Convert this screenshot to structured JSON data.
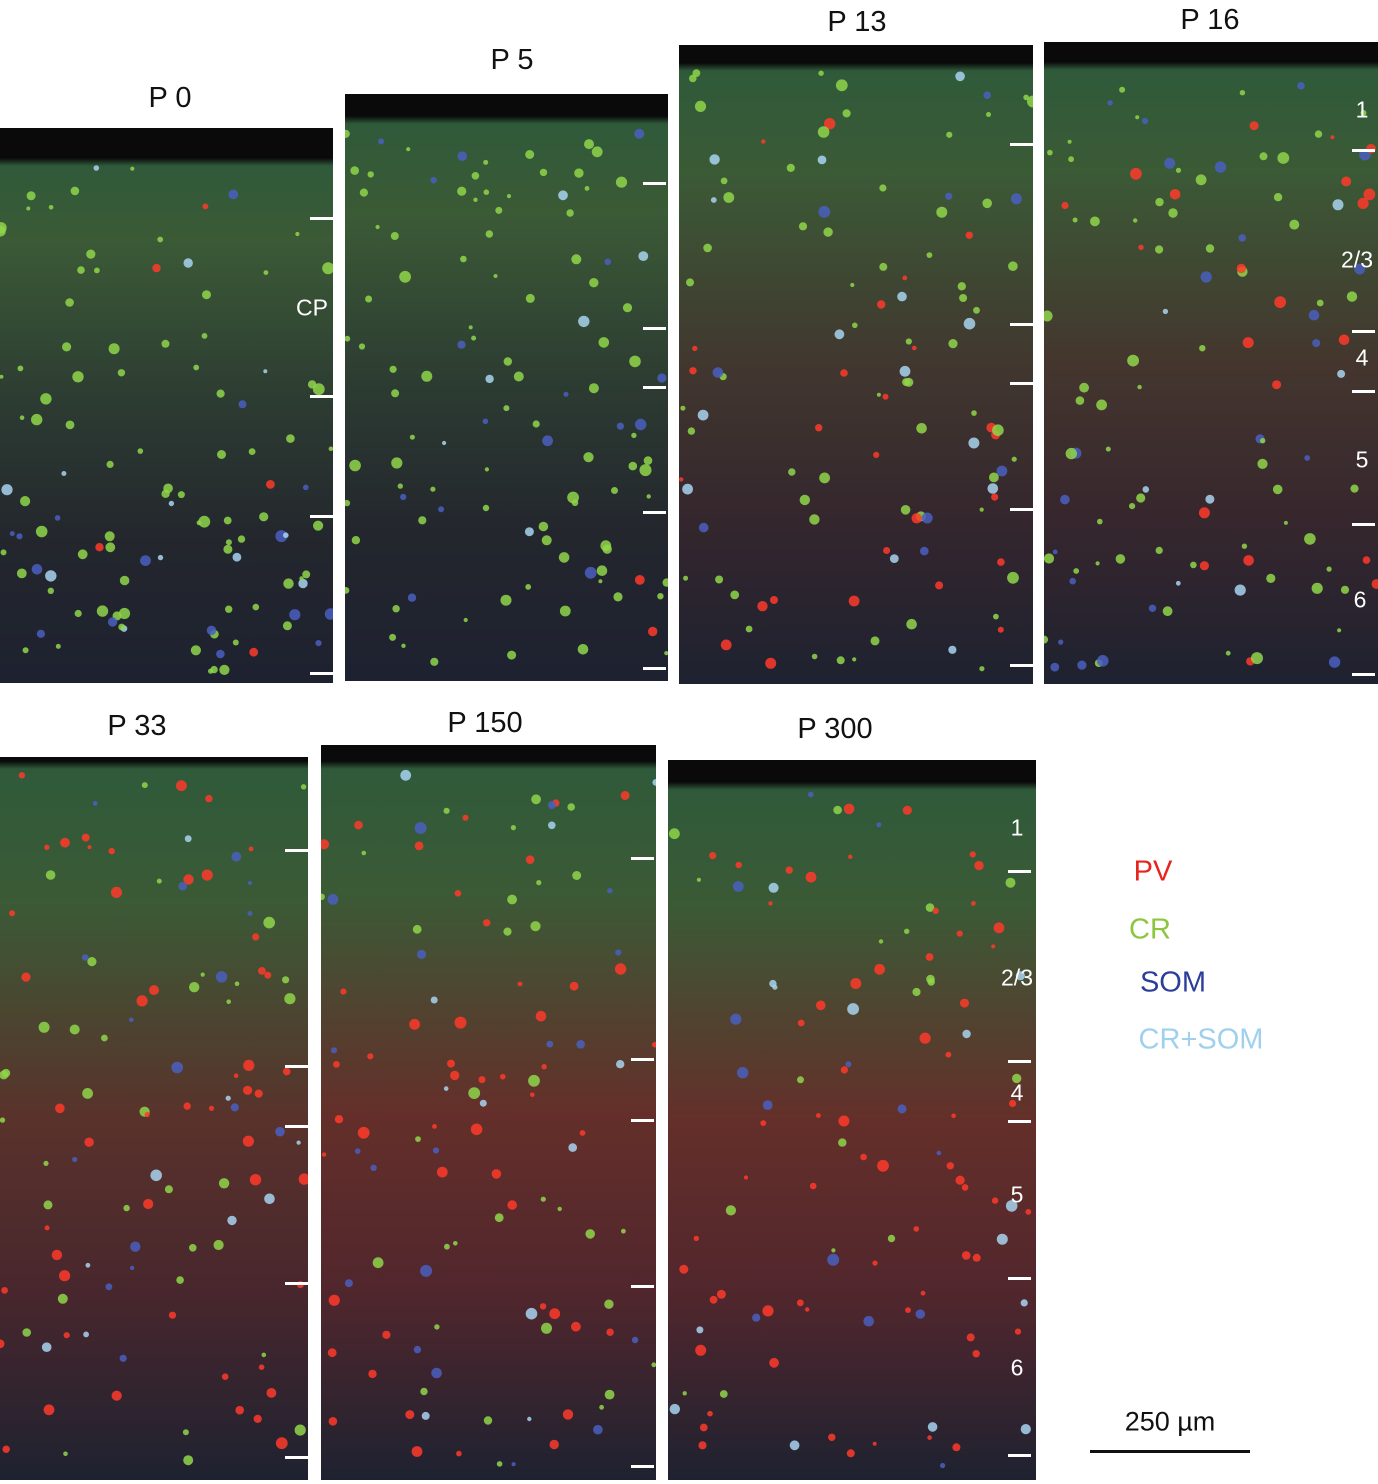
{
  "panels": [
    {
      "title": "P 0",
      "layer_labels": [
        "CP"
      ]
    },
    {
      "title": "P 5"
    },
    {
      "title": "P 13"
    },
    {
      "title": "P 16",
      "layer_labels": [
        "1",
        "2/3",
        "4",
        "5",
        "6"
      ]
    },
    {
      "title": "P 33"
    },
    {
      "title": "P 150"
    },
    {
      "title": "P 300",
      "layer_labels": [
        "1",
        "2/3",
        "4",
        "5",
        "6"
      ]
    }
  ],
  "legend": [
    "PV",
    "CR",
    "SOM",
    "CR+SOM"
  ],
  "scale_bar": "250 µm"
}
